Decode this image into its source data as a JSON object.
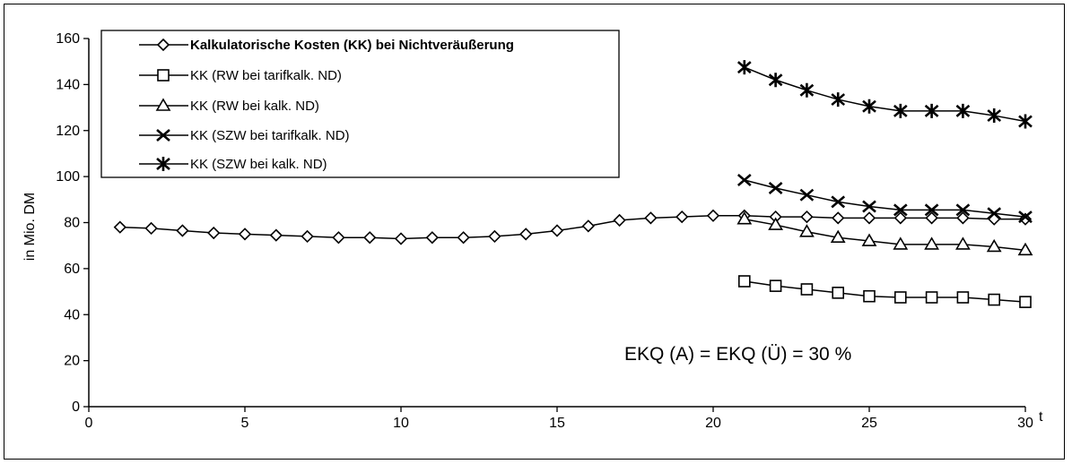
{
  "chart_data": {
    "type": "line",
    "title": "",
    "xlabel": "t",
    "ylabel": "in Mio. DM",
    "xlim": [
      0,
      30
    ],
    "ylim": [
      0,
      160
    ],
    "xticks": [
      0,
      5,
      10,
      15,
      20,
      25,
      30
    ],
    "yticks": [
      0,
      20,
      40,
      60,
      80,
      100,
      120,
      140,
      160
    ],
    "grid": false,
    "legend_position": "top-left",
    "annotation": "EKQ (A) = EKQ (Ü) = 30 %",
    "series": [
      {
        "name": "Kalkulatorische Kosten (KK) bei Nichtveräußerung",
        "marker": "diamond",
        "x": [
          1,
          2,
          3,
          4,
          5,
          6,
          7,
          8,
          9,
          10,
          11,
          12,
          13,
          14,
          15,
          16,
          17,
          18,
          19,
          20,
          21,
          22,
          23,
          24,
          25,
          26,
          27,
          28,
          29,
          30
        ],
        "y": [
          78,
          77.5,
          76.5,
          75.5,
          75,
          74.5,
          74,
          73.5,
          73.5,
          73,
          73.5,
          73.5,
          74,
          75,
          76.5,
          78.5,
          81,
          82,
          82.5,
          83,
          83,
          82.5,
          82.5,
          82,
          82,
          82,
          82,
          82,
          81.5,
          81.5
        ]
      },
      {
        "name": "KK (RW bei tarifkalk. ND)",
        "marker": "square",
        "x": [
          21,
          22,
          23,
          24,
          25,
          26,
          27,
          28,
          29,
          30
        ],
        "y": [
          54.5,
          52.5,
          51,
          49.5,
          48,
          47.5,
          47.5,
          47.5,
          46.5,
          45.5
        ]
      },
      {
        "name": "KK (RW bei kalk. ND)",
        "marker": "triangle",
        "x": [
          21,
          22,
          23,
          24,
          25,
          26,
          27,
          28,
          29,
          30
        ],
        "y": [
          81.5,
          79,
          76,
          73.5,
          72,
          70.5,
          70.5,
          70.5,
          69.5,
          68
        ]
      },
      {
        "name": "KK (SZW bei tarifkalk. ND)",
        "marker": "x",
        "x": [
          21,
          22,
          23,
          24,
          25,
          26,
          27,
          28,
          29,
          30
        ],
        "y": [
          98.5,
          95,
          92,
          89,
          87,
          85.5,
          85.5,
          85.5,
          84,
          82.5
        ]
      },
      {
        "name": "KK (SZW bei kalk. ND)",
        "marker": "asterisk",
        "x": [
          21,
          22,
          23,
          24,
          25,
          26,
          27,
          28,
          29,
          30
        ],
        "y": [
          147.5,
          142,
          137.5,
          133.5,
          130.5,
          128.5,
          128.5,
          128.5,
          126.5,
          124
        ]
      }
    ]
  }
}
